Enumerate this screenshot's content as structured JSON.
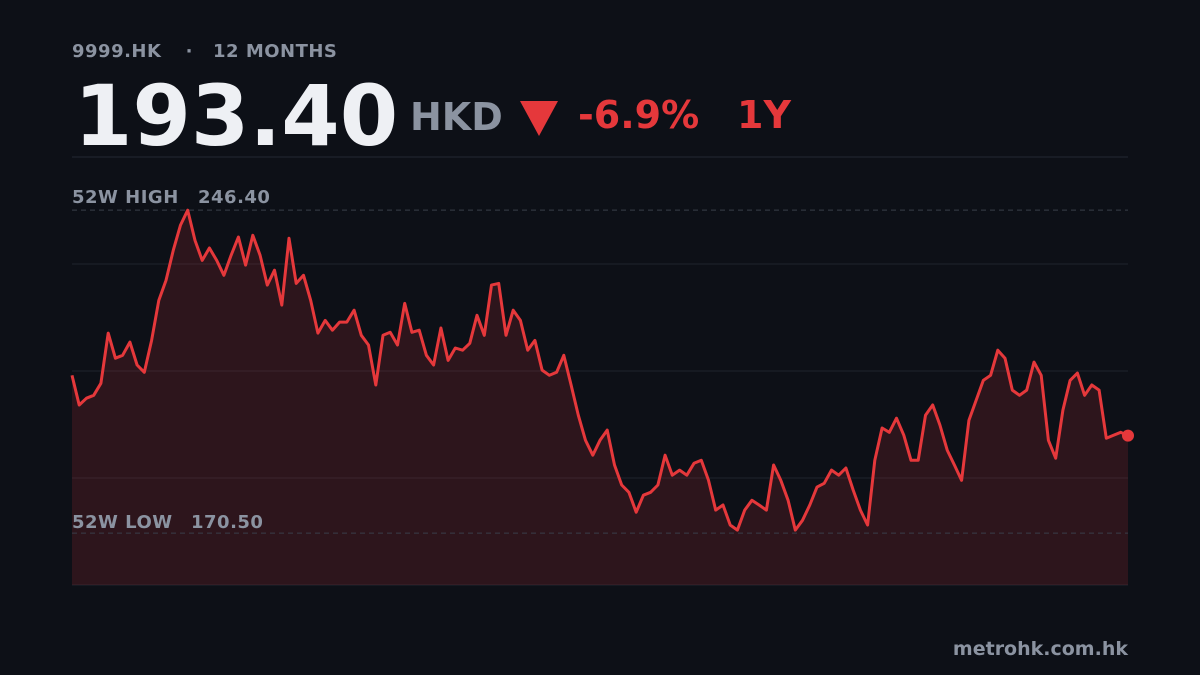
{
  "chart_data": {
    "type": "line",
    "symbol": "9999.HK",
    "period_label": "12 MONTHS",
    "price": {
      "value": 193.4,
      "label": "193.40"
    },
    "currency": "HKD",
    "change": {
      "value": -6.9,
      "label": "-6.9%"
    },
    "range": "1Y",
    "high_label": "52W HIGH",
    "high": {
      "value": 246.4,
      "label": "246.40"
    },
    "low_label": "52W LOW",
    "low": {
      "value": 170.5,
      "label": "170.50"
    },
    "color": "#e5383b",
    "ylim": [
      158.3,
      258.9
    ],
    "grid": true,
    "values": [
      207.6,
      200.6,
      202.2,
      202.9,
      205.7,
      217.5,
      211.6,
      212.3,
      215.4,
      210.0,
      208.3,
      215.8,
      225.2,
      229.9,
      237.0,
      242.9,
      246.4,
      239.3,
      234.6,
      237.5,
      234.6,
      231.1,
      235.8,
      240.1,
      233.5,
      240.5,
      235.8,
      228.8,
      232.3,
      224.1,
      239.8,
      229.2,
      231.1,
      225.2,
      217.5,
      220.5,
      218.2,
      220.1,
      220.1,
      222.9,
      217.0,
      214.7,
      205.3,
      217.0,
      217.7,
      214.7,
      224.5,
      217.7,
      218.2,
      212.3,
      210.0,
      218.7,
      211.1,
      214.0,
      213.5,
      215.1,
      221.7,
      217.0,
      228.8,
      229.2,
      217.0,
      222.9,
      220.5,
      213.5,
      215.8,
      208.8,
      207.6,
      208.3,
      212.3,
      205.3,
      198.2,
      192.3,
      188.8,
      192.3,
      194.7,
      186.5,
      181.8,
      180.1,
      175.4,
      179.4,
      180.1,
      181.8,
      188.8,
      184.1,
      185.3,
      184.1,
      186.9,
      187.6,
      182.9,
      175.9,
      177.1,
      172.4,
      171.2,
      175.9,
      178.2,
      177.1,
      175.9,
      186.5,
      182.9,
      178.2,
      171.2,
      173.5,
      177.1,
      181.3,
      182.2,
      185.3,
      184.1,
      185.8,
      180.6,
      175.9,
      172.4,
      187.6,
      195.2,
      194.2,
      197.5,
      193.5,
      187.6,
      187.6,
      198.2,
      200.6,
      195.9,
      190.0,
      186.5,
      182.9,
      197.0,
      201.7,
      206.4,
      207.6,
      213.5,
      211.6,
      204.1,
      202.9,
      204.1,
      210.7,
      207.6,
      192.3,
      188.1,
      199.4,
      206.4,
      208.1,
      202.9,
      205.3,
      204.1,
      192.8,
      193.5,
      194.2,
      193.4
    ],
    "source": "metrohk.com.hk"
  }
}
